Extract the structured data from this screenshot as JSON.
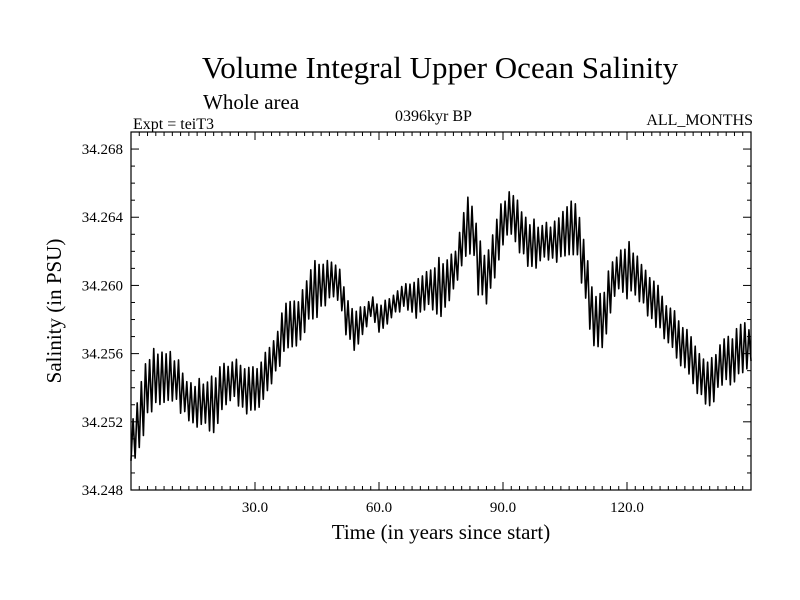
{
  "chart_data": {
    "type": "line",
    "title": "Volume Integral Upper Ocean Salinity",
    "subtitle": "Whole area",
    "expt_label": "Expt = teiT3",
    "center_label": "0396kyr BP",
    "right_label": "ALL_MONTHS",
    "xlabel": "Time (in years since start)",
    "ylabel": "Salinity (in PSU)",
    "xlim": [
      0,
      150
    ],
    "ylim": [
      34.248,
      34.269
    ],
    "xticks": [
      30,
      60,
      90,
      120
    ],
    "xtick_labels": [
      "30.0",
      "60.0",
      "90.0",
      "120.0"
    ],
    "yticks": [
      34.248,
      34.252,
      34.256,
      34.26,
      34.264,
      34.268
    ],
    "ytick_labels": [
      "34.248",
      "34.252",
      "34.256",
      "34.260",
      "34.264",
      "34.268"
    ],
    "grid": false,
    "series": [
      {
        "name": "Salinity",
        "color": "#000000",
        "envelope_x": [
          0,
          1,
          2,
          4,
          6,
          8,
          10,
          13,
          15,
          18,
          20,
          22,
          25,
          27,
          30,
          32,
          35,
          37,
          40,
          43,
          45,
          48,
          50,
          52,
          54,
          56,
          58,
          60,
          63,
          66,
          69,
          72,
          75,
          77,
          79,
          81,
          83,
          84,
          86,
          88,
          90,
          92,
          94,
          96,
          98,
          100,
          102,
          104,
          106,
          108,
          110,
          112,
          114,
          116,
          118,
          120,
          122,
          124,
          126,
          128,
          130,
          132,
          134,
          136,
          138,
          140,
          142,
          144,
          146,
          148,
          150
        ],
        "envelope_low": [
          34.2494,
          34.2497,
          34.25,
          34.252,
          34.2525,
          34.2525,
          34.253,
          34.252,
          34.2515,
          34.2515,
          34.251,
          34.2525,
          34.253,
          34.2525,
          34.252,
          34.253,
          34.2545,
          34.2555,
          34.256,
          34.2575,
          34.258,
          34.259,
          34.259,
          34.257,
          34.2558,
          34.257,
          34.258,
          34.257,
          34.258,
          34.2585,
          34.258,
          34.2585,
          34.258,
          34.259,
          34.26,
          34.2615,
          34.261,
          34.259,
          34.2585,
          34.26,
          34.262,
          34.2625,
          34.2615,
          34.261,
          34.2605,
          34.2615,
          34.261,
          34.2615,
          34.2615,
          34.261,
          34.2585,
          34.256,
          34.256,
          34.258,
          34.2595,
          34.259,
          34.259,
          34.2585,
          34.2575,
          34.257,
          34.2565,
          34.2555,
          34.2545,
          34.254,
          34.253,
          34.2525,
          34.2535,
          34.254,
          34.254,
          34.2545,
          34.255
        ],
        "envelope_high": [
          34.252,
          34.253,
          34.2545,
          34.256,
          34.2568,
          34.2568,
          34.2565,
          34.255,
          34.2545,
          34.2548,
          34.255,
          34.2555,
          34.256,
          34.2558,
          34.2555,
          34.256,
          34.2575,
          34.259,
          34.2595,
          34.261,
          34.2618,
          34.2615,
          34.2615,
          34.26,
          34.2585,
          34.259,
          34.2595,
          34.2592,
          34.2595,
          34.2605,
          34.2605,
          34.261,
          34.262,
          34.262,
          34.2625,
          34.2655,
          34.265,
          34.263,
          34.262,
          34.2635,
          34.2655,
          34.266,
          34.265,
          34.264,
          34.264,
          34.264,
          34.264,
          34.2645,
          34.265,
          34.2655,
          34.2625,
          34.26,
          34.26,
          34.2615,
          34.2625,
          34.263,
          34.2625,
          34.2615,
          34.2605,
          34.26,
          34.259,
          34.2585,
          34.258,
          34.257,
          34.256,
          34.256,
          34.2565,
          34.2575,
          34.2575,
          34.258,
          34.258
        ]
      }
    ]
  }
}
